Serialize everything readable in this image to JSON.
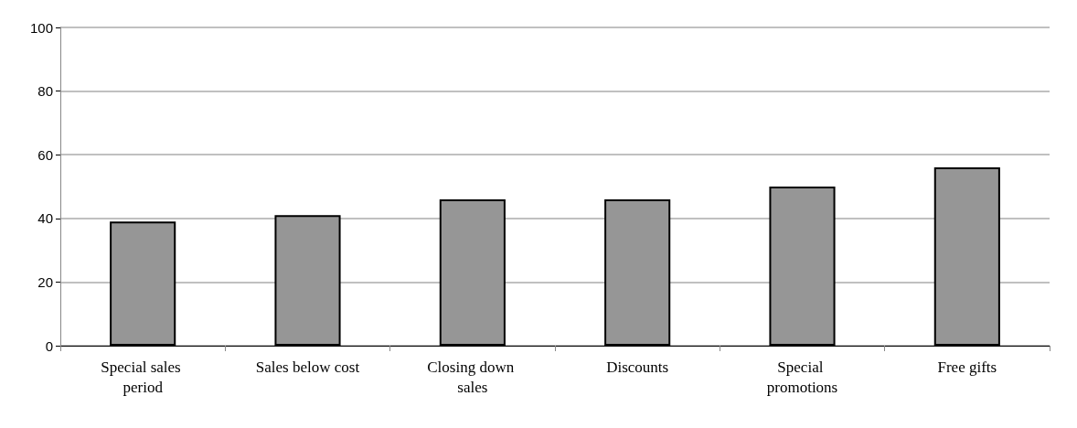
{
  "chart_data": {
    "type": "bar",
    "categories": [
      "Special sales period",
      "Sales below cost",
      "Closing down sales",
      "Discounts",
      "Special promotions",
      "Free gifts"
    ],
    "values": [
      39,
      41,
      46,
      46,
      50,
      56
    ],
    "color": "#969696",
    "ylim": [
      0,
      100
    ],
    "yticks": [
      0,
      20,
      40,
      60,
      80,
      100
    ],
    "grid": "y"
  }
}
